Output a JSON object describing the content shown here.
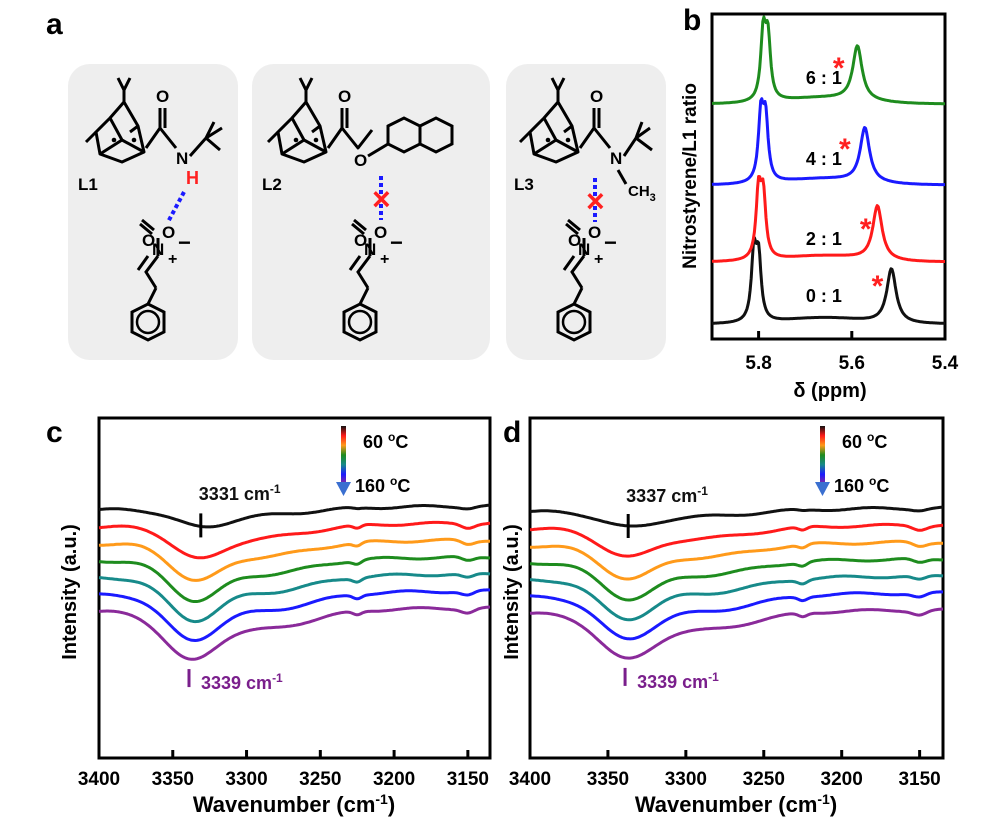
{
  "panel_letters": {
    "a": "a",
    "b": "b",
    "c": "c",
    "d": "d"
  },
  "panel_a": {
    "ligands": [
      {
        "label": "L1",
        "h_atom": "H",
        "interaction": "hydrogen-bond"
      },
      {
        "label": "L2",
        "interaction": "blocked"
      },
      {
        "label": "L3",
        "methyl": "CH",
        "methyl_sub": "3",
        "interaction": "blocked"
      }
    ],
    "atoms": {
      "O": "O",
      "N": "N",
      "plus": "+",
      "minus": "−",
      "H": "H"
    },
    "colors": {
      "box": "#eeeeee",
      "hbond": "#1a1aff",
      "h_atom": "#ff2020",
      "cross": "#ff2020"
    },
    "icons": [
      "bicyclic-ligand-icon",
      "nitrostyrene-icon",
      "hydrogen-bond-icon",
      "blocked-interaction-cross-icon"
    ]
  },
  "chart_data": [
    {
      "panel": "b",
      "type": "line",
      "xlabel_prefix": "δ (ppm)",
      "ylabel": "Nitrostyrene/L1 ratio",
      "xlim": [
        5.9,
        5.4
      ],
      "x_reversed": true,
      "x_ticks": [
        "5.8",
        "5.6",
        "5.4"
      ],
      "x_tick_values": [
        5.8,
        5.6,
        5.4
      ],
      "star_glyph": "*",
      "star_color": "#ff2020",
      "series": [
        {
          "name": "0 : 1",
          "color": "#111111",
          "peak_doublet": [
            5.81,
            5.8
          ],
          "peak_shifted": 5.515,
          "star_x": 5.545
        },
        {
          "name": "2 : 1",
          "color": "#ff1a1a",
          "peak_doublet": [
            5.8,
            5.79
          ],
          "peak_shifted": 5.545,
          "star_x": 5.57
        },
        {
          "name": "4 : 1",
          "color": "#1a1aff",
          "peak_doublet": [
            5.795,
            5.785
          ],
          "peak_shifted": 5.572,
          "star_x": 5.615
        },
        {
          "name": "6 : 1",
          "color": "#1e8c1e",
          "peak_doublet": [
            5.79,
            5.78
          ],
          "peak_shifted": 5.588,
          "star_x": 5.628
        }
      ]
    },
    {
      "panel": "c",
      "type": "line",
      "xlabel": "Wavenumber (cm",
      "xlabel_sup": "-1",
      "xlabel_end": ")",
      "ylabel": "Intensity (a.u.)",
      "xlim": [
        3400,
        3135
      ],
      "x_reversed": true,
      "x_ticks": [
        "3400",
        "3350",
        "3300",
        "3250",
        "3200",
        "3150"
      ],
      "x_tick_values": [
        3400,
        3350,
        3300,
        3250,
        3200,
        3150
      ],
      "legend": {
        "top": "60 °C",
        "bottom": "160 °C",
        "top_num": "60 ",
        "bottom_num": "160 ",
        "unit": "C",
        "deg": "o"
      },
      "annotation_top": {
        "text": "3331 cm",
        "sup": "-1",
        "x": 3331,
        "color": "#111111"
      },
      "annotation_bottom": {
        "text": "3339 cm",
        "sup": "-1",
        "x": 3339,
        "color": "#7a1f8c"
      },
      "series": [
        {
          "name": "60 °C",
          "color": "#111111",
          "min_x": 3331,
          "depth": 0.22
        },
        {
          "name": "",
          "color": "#ff1a1a",
          "min_x": 3333,
          "depth": 0.4
        },
        {
          "name": "",
          "color": "#ff9a1a",
          "min_x": 3335,
          "depth": 0.46
        },
        {
          "name": "",
          "color": "#1e8c1e",
          "min_x": 3336,
          "depth": 0.5
        },
        {
          "name": "",
          "color": "#178a8a",
          "min_x": 3337,
          "depth": 0.54
        },
        {
          "name": "",
          "color": "#1a1aff",
          "min_x": 3338,
          "depth": 0.58
        },
        {
          "name": "160 °C",
          "color": "#8a2a9a",
          "min_x": 3339,
          "depth": 0.62
        }
      ]
    },
    {
      "panel": "d",
      "type": "line",
      "xlabel": "Wavenumber (cm",
      "xlabel_sup": "-1",
      "xlabel_end": ")",
      "ylabel": "Intensity (a.u.)",
      "xlim": [
        3400,
        3135
      ],
      "x_reversed": true,
      "x_ticks": [
        "3400",
        "3350",
        "3300",
        "3250",
        "3200",
        "3150"
      ],
      "x_tick_values": [
        3400,
        3350,
        3300,
        3250,
        3200,
        3150
      ],
      "legend": {
        "top": "60 °C",
        "bottom": "160 °C",
        "top_num": "60 ",
        "bottom_num": "160 ",
        "unit": "C",
        "deg": "o"
      },
      "annotation_top": {
        "text": "3337 cm",
        "sup": "-1",
        "x": 3337,
        "color": "#111111"
      },
      "annotation_bottom": {
        "text": "3339 cm",
        "sup": "-1",
        "x": 3339,
        "color": "#7a1f8c"
      },
      "series": [
        {
          "name": "60 °C",
          "color": "#111111",
          "min_x": 3337,
          "depth": 0.2
        },
        {
          "name": "",
          "color": "#ff1a1a",
          "min_x": 3338,
          "depth": 0.36
        },
        {
          "name": "",
          "color": "#ff9a1a",
          "min_x": 3338,
          "depth": 0.42
        },
        {
          "name": "",
          "color": "#1e8c1e",
          "min_x": 3338,
          "depth": 0.46
        },
        {
          "name": "",
          "color": "#178a8a",
          "min_x": 3339,
          "depth": 0.5
        },
        {
          "name": "",
          "color": "#1a1aff",
          "min_x": 3339,
          "depth": 0.54
        },
        {
          "name": "160 °C",
          "color": "#8a2a9a",
          "min_x": 3339,
          "depth": 0.58
        }
      ]
    }
  ]
}
